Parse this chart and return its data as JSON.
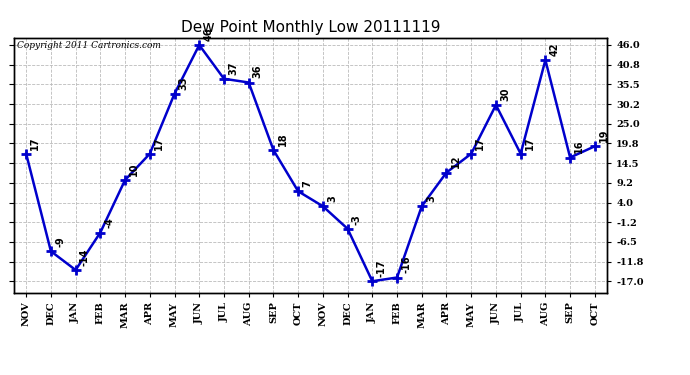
{
  "title": "Dew Point Monthly Low 20111119",
  "copyright": "Copyright 2011 Cartronics.com",
  "months": [
    "NOV",
    "DEC",
    "JAN",
    "FEB",
    "MAR",
    "APR",
    "MAY",
    "JUN",
    "JUL",
    "AUG",
    "SEP",
    "OCT",
    "NOV",
    "DEC",
    "JAN",
    "FEB",
    "MAR",
    "APR",
    "MAY",
    "JUN",
    "JUL",
    "AUG",
    "SEP",
    "OCT"
  ],
  "values": [
    17,
    -9,
    -14,
    -4,
    10,
    17,
    33,
    46,
    37,
    36,
    18,
    7,
    3,
    -3,
    -17,
    -16,
    3,
    12,
    17,
    30,
    17,
    42,
    16,
    19
  ],
  "yticks": [
    -17.0,
    -11.8,
    -6.5,
    -1.2,
    4.0,
    9.2,
    14.5,
    19.8,
    25.0,
    30.2,
    35.5,
    40.8,
    46.0
  ],
  "ymin": -20,
  "ymax": 48,
  "line_color": "#0000cc",
  "bg_color": "#ffffff",
  "grid_color": "#bbbbbb",
  "title_fontsize": 11,
  "tick_fontsize": 7,
  "annot_fontsize": 7,
  "copyright_fontsize": 6.5
}
